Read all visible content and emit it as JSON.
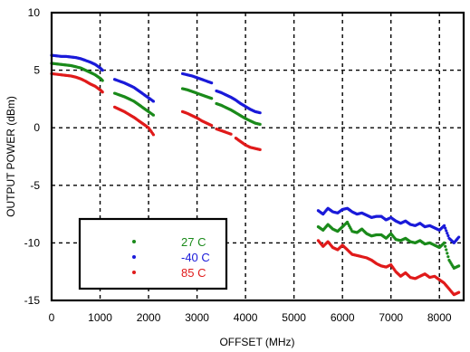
{
  "chart_data": {
    "type": "scatter",
    "title": "",
    "xlabel": "OFFSET (MHz)",
    "ylabel": "OUTPUT POWER (dBm)",
    "xlim": [
      0,
      8500
    ],
    "ylim": [
      -15,
      10
    ],
    "xticks": [
      "0",
      "1000",
      "2000",
      "3000",
      "4000",
      "5000",
      "6000",
      "7000",
      "8000"
    ],
    "yticks": [
      "10",
      "5",
      "0",
      "-5",
      "-10",
      "-15"
    ],
    "grid": true,
    "legend_position": "bottom-left",
    "series": [
      {
        "name": "27 C",
        "color": "#1a8a1a",
        "segments": [
          {
            "x": [
              0,
              100,
              200,
              300,
              400,
              500,
              600,
              700,
              800,
              900,
              1000,
              1050
            ],
            "y": [
              5.6,
              5.55,
              5.5,
              5.45,
              5.4,
              5.3,
              5.2,
              5.0,
              4.8,
              4.6,
              4.3,
              4.1
            ]
          },
          {
            "x": [
              1300,
              1400,
              1500,
              1600,
              1700,
              1800,
              1900,
              2000,
              2100
            ],
            "y": [
              3.0,
              2.85,
              2.7,
              2.5,
              2.3,
              2.0,
              1.7,
              1.4,
              1.1
            ]
          },
          {
            "x": [
              2700,
              2800,
              2900,
              3000,
              3100,
              3200,
              3300
            ],
            "y": [
              3.4,
              3.3,
              3.15,
              3.0,
              2.85,
              2.7,
              2.55
            ]
          },
          {
            "x": [
              3400,
              3500,
              3600,
              3700,
              3800,
              3900,
              4000,
              4100,
              4200,
              4300
            ],
            "y": [
              2.1,
              1.95,
              1.75,
              1.55,
              1.3,
              1.05,
              0.8,
              0.6,
              0.4,
              0.3
            ]
          },
          {
            "x": [
              5500,
              5600,
              5700,
              5800,
              5900,
              6000,
              6100,
              6200,
              6300,
              6400,
              6500,
              6600,
              6700,
              6800,
              6900,
              7000,
              7100,
              7200,
              7300,
              7400,
              7500,
              7600,
              7700,
              7800,
              7900,
              8000,
              8100,
              8200,
              8300,
              8400
            ],
            "y": [
              -8.6,
              -8.9,
              -8.4,
              -8.8,
              -9.0,
              -8.6,
              -8.2,
              -9.0,
              -9.1,
              -8.8,
              -9.2,
              -9.4,
              -9.3,
              -9.3,
              -9.6,
              -9.2,
              -9.7,
              -9.8,
              -9.6,
              -9.9,
              -10.0,
              -9.8,
              -10.1,
              -10.0,
              -10.2,
              -10.4,
              -10.0,
              -11.5,
              -12.2,
              -12.0
            ]
          }
        ]
      },
      {
        "name": "-40 C",
        "color": "#1a1ad9",
        "segments": [
          {
            "x": [
              0,
              100,
              200,
              300,
              400,
              500,
              600,
              700,
              800,
              900,
              1000,
              1050
            ],
            "y": [
              6.3,
              6.25,
              6.2,
              6.2,
              6.15,
              6.1,
              6.0,
              5.85,
              5.7,
              5.5,
              5.2,
              5.0
            ]
          },
          {
            "x": [
              1300,
              1400,
              1500,
              1600,
              1700,
              1800,
              1900,
              2000,
              2100
            ],
            "y": [
              4.2,
              4.05,
              3.9,
              3.7,
              3.5,
              3.2,
              2.9,
              2.6,
              2.3
            ]
          },
          {
            "x": [
              2700,
              2800,
              2900,
              3000,
              3100,
              3200,
              3300
            ],
            "y": [
              4.7,
              4.6,
              4.5,
              4.35,
              4.2,
              4.05,
              3.9
            ]
          },
          {
            "x": [
              3400,
              3500,
              3600,
              3700,
              3800,
              3900,
              4000,
              4100,
              4200,
              4300
            ],
            "y": [
              3.2,
              3.05,
              2.85,
              2.65,
              2.4,
              2.1,
              1.85,
              1.6,
              1.4,
              1.3
            ]
          },
          {
            "x": [
              5500,
              5600,
              5700,
              5800,
              5900,
              6000,
              6100,
              6200,
              6300,
              6400,
              6500,
              6600,
              6700,
              6800,
              6900,
              7000,
              7100,
              7200,
              7300,
              7400,
              7500,
              7600,
              7700,
              7800,
              7900,
              8000,
              8100,
              8200,
              8300,
              8400
            ],
            "y": [
              -7.2,
              -7.5,
              -7.0,
              -7.3,
              -7.4,
              -7.1,
              -7.0,
              -7.3,
              -7.5,
              -7.4,
              -7.6,
              -7.8,
              -7.7,
              -7.7,
              -8.0,
              -7.8,
              -8.1,
              -8.3,
              -8.1,
              -8.4,
              -8.5,
              -8.3,
              -8.6,
              -8.5,
              -8.7,
              -8.9,
              -8.5,
              -9.6,
              -10.0,
              -9.5
            ]
          }
        ]
      },
      {
        "name": "85 C",
        "color": "#e01a1a",
        "segments": [
          {
            "x": [
              0,
              100,
              200,
              300,
              400,
              500,
              600,
              700,
              800,
              900,
              1000,
              1050
            ],
            "y": [
              4.7,
              4.65,
              4.6,
              4.55,
              4.5,
              4.4,
              4.25,
              4.05,
              3.8,
              3.6,
              3.3,
              3.1
            ]
          },
          {
            "x": [
              1300,
              1400,
              1500,
              1600,
              1700,
              1800,
              1900,
              2000,
              2100
            ],
            "y": [
              1.8,
              1.6,
              1.4,
              1.15,
              0.9,
              0.6,
              0.3,
              0.0,
              -0.6
            ]
          },
          {
            "x": [
              2700,
              2800,
              2900,
              3000,
              3100,
              3200,
              3300
            ],
            "y": [
              1.4,
              1.25,
              1.05,
              0.85,
              0.6,
              0.4,
              0.2
            ]
          },
          {
            "x": [
              3400,
              3500,
              3600,
              3700
            ],
            "y": [
              -0.1,
              -0.25,
              -0.4,
              -0.55
            ]
          },
          {
            "x": [
              3800,
              3900,
              4000,
              4100,
              4200,
              4300
            ],
            "y": [
              -0.9,
              -1.2,
              -1.5,
              -1.7,
              -1.8,
              -1.9
            ]
          },
          {
            "x": [
              5500,
              5600,
              5700,
              5800,
              5900,
              6000,
              6100,
              6200,
              6300,
              6400,
              6500,
              6600,
              6700,
              6800,
              6900,
              7000,
              7100,
              7200,
              7300,
              7400,
              7500,
              7600,
              7700,
              7800,
              7900,
              8000,
              8100,
              8200,
              8300,
              8400
            ],
            "y": [
              -9.8,
              -10.3,
              -9.9,
              -10.4,
              -10.6,
              -10.2,
              -10.6,
              -11.0,
              -11.1,
              -11.2,
              -11.3,
              -11.5,
              -11.8,
              -12.0,
              -12.1,
              -11.9,
              -12.5,
              -12.9,
              -12.6,
              -13.0,
              -13.1,
              -12.9,
              -12.7,
              -13.0,
              -12.9,
              -13.2,
              -13.5,
              -14.0,
              -14.5,
              -14.3
            ]
          }
        ]
      }
    ]
  }
}
